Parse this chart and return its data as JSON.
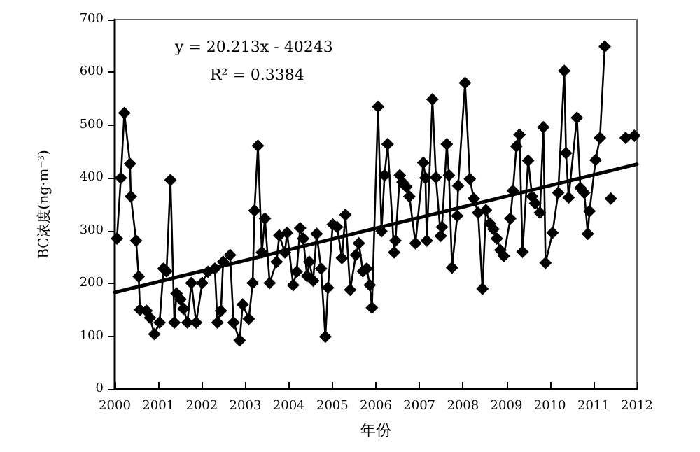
{
  "chart_data": {
    "type": "line",
    "xlabel": "年份",
    "ylabel": "BC浓度(ng·m⁻³)",
    "annotations": [
      "y = 20.213x - 40243",
      "R² = 0.3384"
    ],
    "xlim": [
      2000,
      2012
    ],
    "xticks": [
      2000,
      2001,
      2002,
      2003,
      2004,
      2005,
      2006,
      2007,
      2008,
      2009,
      2010,
      2011,
      2012
    ],
    "ylim": [
      0,
      700
    ],
    "yticks": [
      0,
      100,
      200,
      300,
      400,
      500,
      600,
      700
    ],
    "grid": false,
    "marker": "diamond",
    "line_style": "solid",
    "series": [
      {
        "color": "#000000",
        "x": [
          2000.05,
          2000.14,
          2000.22,
          2000.35,
          2000.37,
          2000.49,
          2000.55,
          2000.58,
          2000.73,
          2000.81,
          2000.91,
          2001.03,
          2001.12,
          2001.19,
          2001.28,
          2001.37,
          2001.42,
          2001.51,
          2001.58,
          2001.67,
          2001.76,
          2001.87,
          2002.01,
          2002.14,
          2002.3,
          2002.36,
          2002.44,
          2002.49,
          2002.65,
          2002.73,
          2002.87,
          2002.94,
          2003.08,
          2003.17,
          2003.21,
          2003.29,
          2003.38,
          2003.45,
          2003.56,
          2003.72,
          2003.78,
          2003.91,
          2003.96,
          2004.1,
          2004.18,
          2004.26,
          2004.33,
          2004.42,
          2004.47,
          2004.56,
          2004.64,
          2004.74,
          2004.84,
          2004.9,
          2005.01,
          2005.11,
          2005.22,
          2005.3,
          2005.41,
          2005.54,
          2005.61,
          2005.7,
          2005.79,
          2005.86,
          2005.91,
          2006.05,
          2006.13,
          2006.2,
          2006.27,
          2006.42,
          2006.45,
          2006.55,
          2006.61,
          2006.7,
          2006.77,
          2006.91,
          2007.09,
          2007.14,
          2007.17,
          2007.3,
          2007.38,
          2007.49,
          2007.52,
          2007.63,
          2007.68,
          2007.75,
          2007.87,
          2007.89,
          2008.05,
          2008.16,
          2008.25,
          2008.35,
          2008.45,
          2008.53,
          2008.62,
          2008.7,
          2008.78,
          2008.86,
          2008.94,
          2009.09,
          2009.15,
          2009.23,
          2009.3,
          2009.37,
          2009.5,
          2009.59,
          2009.66,
          2009.77,
          2009.85,
          2009.9,
          2010.06,
          2010.19,
          2010.33,
          2010.37,
          2010.43,
          2010.62,
          2010.7,
          2010.79,
          2010.87,
          2010.91,
          2011.05,
          2011.15,
          2011.26,
          2011.33,
          2011.4,
          2011.57,
          2011.74,
          2011.94
        ],
        "values": [
          285,
          400,
          523,
          427,
          365,
          281,
          213,
          150,
          148,
          135,
          104,
          126,
          228,
          223,
          396,
          126,
          181,
          170,
          152,
          126,
          201,
          126,
          201,
          222,
          228,
          126,
          148,
          241,
          254,
          126,
          92,
          160,
          133,
          201,
          338,
          461,
          259,
          323,
          201,
          241,
          291,
          259,
          296,
          197,
          222,
          305,
          285,
          214,
          241,
          205,
          294,
          228,
          99,
          192,
          312,
          307,
          248,
          330,
          188,
          254,
          276,
          223,
          228,
          197,
          154,
          535,
          299,
          405,
          464,
          259,
          281,
          405,
          392,
          383,
          365,
          276,
          429,
          400,
          281,
          549,
          401,
          290,
          307,
          464,
          405,
          230,
          328,
          385,
          580,
          398,
          361,
          334,
          190,
          339,
          314,
          303,
          285,
          263,
          252,
          323,
          376,
          460,
          482,
          260,
          433,
          365,
          352,
          334,
          496,
          239,
          296,
          372,
          603,
          447,
          363,
          514,
          381,
          372,
          294,
          337,
          434,
          476,
          649,
          null,
          361,
          null,
          476,
          480
        ]
      },
      {
        "type": "line",
        "color": "#000000",
        "marker": "none",
        "x": [
          2000,
          2012
        ],
        "values": [
          183,
          426
        ]
      }
    ]
  }
}
